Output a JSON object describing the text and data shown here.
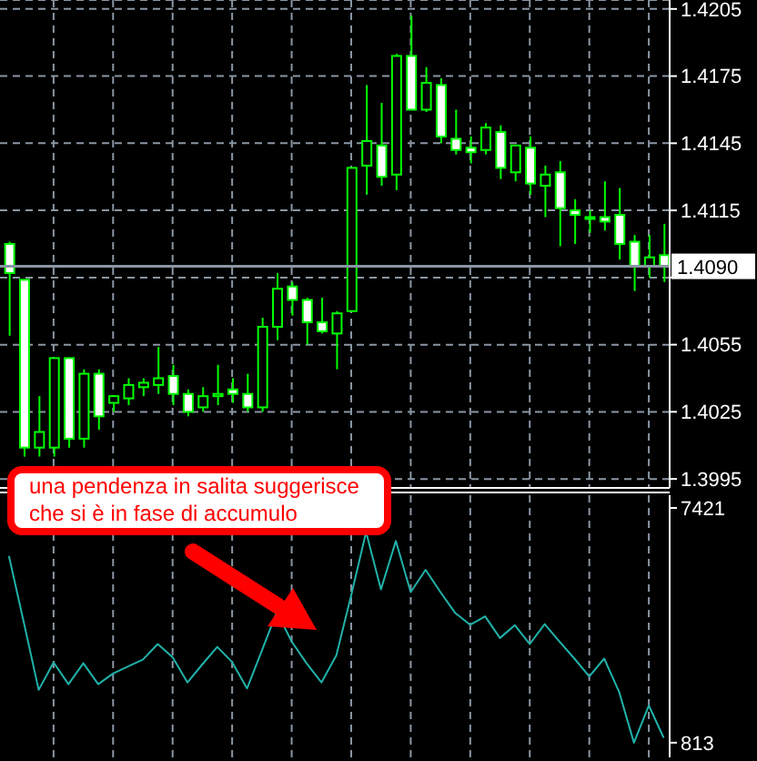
{
  "chart_data": [
    {
      "type": "candlestick",
      "categories": [
        null,
        null,
        null,
        null,
        null,
        null,
        null,
        null,
        null,
        null,
        null,
        null,
        null,
        null,
        null,
        null,
        null,
        null,
        null,
        null,
        null,
        null,
        null,
        null,
        null,
        null,
        null,
        null,
        null,
        null,
        null,
        null,
        null,
        null,
        null,
        null,
        null,
        null,
        null,
        null,
        null,
        null,
        null,
        null,
        null
      ],
      "ohlc": [
        [
          1.41,
          1.4101,
          1.4059,
          1.4087
        ],
        [
          1.4084,
          1.4084,
          1.4005,
          1.4009
        ],
        [
          1.4009,
          1.4032,
          1.4005,
          1.4016
        ],
        [
          1.4009,
          1.4049,
          1.4005,
          1.4049
        ],
        [
          1.4049,
          1.4049,
          1.4009,
          1.4013
        ],
        [
          1.4013,
          1.4044,
          1.4009,
          1.4042
        ],
        [
          1.4042,
          1.4044,
          1.4017,
          1.4023
        ],
        [
          1.4029,
          1.4032,
          1.4025,
          1.4032
        ],
        [
          1.4031,
          1.404,
          1.4028,
          1.4037
        ],
        [
          1.4036,
          1.404,
          1.4032,
          1.4038
        ],
        [
          1.4037,
          1.4054,
          1.4033,
          1.404
        ],
        [
          1.4041,
          1.4046,
          1.4028,
          1.4033
        ],
        [
          1.4033,
          1.4035,
          1.4023,
          1.4025
        ],
        [
          1.4027,
          1.4036,
          1.4025,
          1.4032
        ],
        [
          1.4032,
          1.4046,
          1.4028,
          1.4033
        ],
        [
          1.4035,
          1.404,
          1.4029,
          1.4033
        ],
        [
          1.4033,
          1.4042,
          1.4025,
          1.4027
        ],
        [
          1.4027,
          1.4067,
          1.4025,
          1.4063
        ],
        [
          1.4063,
          1.4087,
          1.4057,
          1.408
        ],
        [
          1.4081,
          1.4083,
          1.4068,
          1.4075
        ],
        [
          1.4075,
          1.4076,
          1.4055,
          1.4065
        ],
        [
          1.4065,
          1.4076,
          1.406,
          1.4061
        ],
        [
          1.406,
          1.407,
          1.4044,
          1.4069
        ],
        [
          1.407,
          1.4134,
          1.407,
          1.4134
        ],
        [
          1.4135,
          1.4171,
          1.4122,
          1.4146
        ],
        [
          1.4144,
          1.4163,
          1.4126,
          1.413
        ],
        [
          1.4131,
          1.4185,
          1.4124,
          1.4184
        ],
        [
          1.4184,
          1.4202,
          1.416,
          1.416
        ],
        [
          1.416,
          1.4179,
          1.4159,
          1.4172
        ],
        [
          1.4171,
          1.4174,
          1.4145,
          1.4148
        ],
        [
          1.4147,
          1.416,
          1.414,
          1.4142
        ],
        [
          1.4143,
          1.4148,
          1.4136,
          1.4141
        ],
        [
          1.4142,
          1.4154,
          1.414,
          1.4152
        ],
        [
          1.415,
          1.4153,
          1.4129,
          1.4134
        ],
        [
          1.4132,
          1.4144,
          1.4128,
          1.4144
        ],
        [
          1.4143,
          1.4148,
          1.4122,
          1.4127
        ],
        [
          1.4126,
          1.4135,
          1.4112,
          1.4131
        ],
        [
          1.4132,
          1.4137,
          1.4099,
          1.4116
        ],
        [
          1.4115,
          1.412,
          1.41,
          1.4113
        ],
        [
          1.4112,
          1.4115,
          1.4105,
          1.4112
        ],
        [
          1.4112,
          1.4128,
          1.4106,
          1.411
        ],
        [
          1.4113,
          1.4125,
          1.4093,
          1.41
        ],
        [
          1.4101,
          1.4104,
          1.4079,
          1.409
        ],
        [
          1.409,
          1.4104,
          1.4085,
          1.4094
        ],
        [
          1.4095,
          1.4109,
          1.4083,
          1.409
        ]
      ],
      "color": "#00ff00",
      "ylim": [
        1.3991,
        1.4209
      ],
      "yticks": [
        1.3995,
        1.4025,
        1.4055,
        {
          "value": 1.4085,
          "label": null
        },
        1.4115,
        1.4145,
        1.4175,
        1.4205
      ],
      "grid": true,
      "ref_lines": [
        {
          "axis": "y",
          "value": 1.409,
          "label": "1.4090",
          "color": "#8a96a3"
        }
      ],
      "annotations": [
        "una pendenza in salita suggerisce che si è in fase di accumulo"
      ]
    },
    {
      "type": "line",
      "categories": [
        null,
        null,
        null,
        null,
        null,
        null,
        null,
        null,
        null,
        null,
        null,
        null,
        null,
        null,
        null,
        null,
        null,
        null,
        null,
        null,
        null,
        null,
        null,
        null,
        null,
        null,
        null,
        null,
        null,
        null,
        null,
        null,
        null,
        null,
        null,
        null,
        null,
        null,
        null,
        null,
        null,
        null,
        null,
        null,
        null
      ],
      "series": [
        {
          "color": "#20b2aa",
          "values": [
            6070,
            4200,
            2300,
            3070,
            2460,
            3050,
            2460,
            2760,
            2960,
            3150,
            3590,
            3220,
            2510,
            3020,
            3510,
            3080,
            2340,
            3410,
            4490,
            3660,
            3050,
            2510,
            3270,
            4960,
            6740,
            5130,
            6490,
            5050,
            5680,
            5050,
            4460,
            4130,
            4370,
            3760,
            4120,
            3590,
            4150,
            3660,
            3180,
            2680,
            3180,
            2250,
            813,
            1860,
            950
          ]
        }
      ],
      "ylim": [
        400,
        7780
      ],
      "yticks": [
        813,
        7421
      ],
      "grid": "x"
    }
  ]
}
